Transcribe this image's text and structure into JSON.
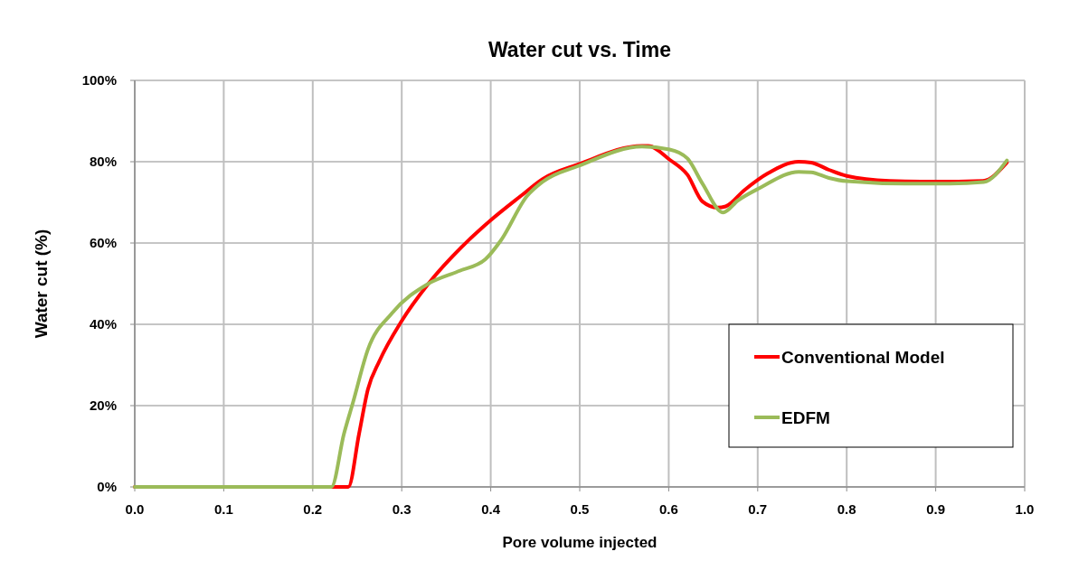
{
  "chart_data": {
    "type": "line",
    "title": "Water cut vs. Time",
    "xlabel": "Pore volume injected",
    "ylabel": "Water cut (%)",
    "xlim": [
      0,
      1
    ],
    "xticks": [
      {
        "value": 0,
        "label": "0.0"
      },
      {
        "value": 0.1,
        "label": "0.1"
      },
      {
        "value": 0.2,
        "label": "0.2"
      },
      {
        "value": 0.3,
        "label": "0.3"
      },
      {
        "value": 0.4,
        "label": "0.4"
      },
      {
        "value": 0.5,
        "label": "0.5"
      },
      {
        "value": 0.6,
        "label": "0.6"
      },
      {
        "value": 0.7,
        "label": "0.7"
      },
      {
        "value": 0.8,
        "label": "0.8"
      },
      {
        "value": 0.9,
        "label": "0.9"
      },
      {
        "value": 1,
        "label": "1.0"
      }
    ],
    "ylim": [
      0,
      100
    ],
    "yticks": [
      {
        "value": 0,
        "label": "0%"
      },
      {
        "value": 20,
        "label": "20%"
      },
      {
        "value": 40,
        "label": "40%"
      },
      {
        "value": 60,
        "label": "60%"
      },
      {
        "value": 80,
        "label": "80%"
      },
      {
        "value": 100,
        "label": "100%"
      }
    ],
    "grid": true,
    "legend": "bottom right",
    "marker": "none",
    "line_style": "solid",
    "series": [
      {
        "name": "Conventional Model",
        "color": "#ff0000",
        "x": [
          0,
          0.1,
          0.2,
          0.24,
          0.252,
          0.262,
          0.275,
          0.299,
          0.33,
          0.37,
          0.4,
          0.434,
          0.458,
          0.499,
          0.57,
          0.577,
          0.601,
          0.621,
          0.638,
          0.655,
          0.664,
          0.685,
          0.712,
          0.746,
          0.76,
          0.78,
          0.8,
          0.848,
          0.898,
          0.953,
          0.98
        ],
        "values": [
          0,
          0,
          0,
          0,
          13,
          24,
          31,
          40.5,
          50,
          59.6,
          65.6,
          71.6,
          75.7,
          79.4,
          83.9,
          83.9,
          80.5,
          76.8,
          70.2,
          68.7,
          69,
          73,
          77.2,
          80,
          79.8,
          78,
          76.5,
          75.3,
          75.1,
          75.3,
          79.8
        ]
      },
      {
        "name": "EDFM",
        "color": "#9bbb59",
        "x": [
          0,
          0.1,
          0.2,
          0.221,
          0.235,
          0.245,
          0.262,
          0.289,
          0.33,
          0.363,
          0.394,
          0.411,
          0.441,
          0.458,
          0.499,
          0.57,
          0.601,
          0.621,
          0.638,
          0.661,
          0.678,
          0.702,
          0.746,
          0.76,
          0.78,
          0.8,
          0.865,
          0.916,
          0.954,
          0.98
        ],
        "values": [
          0,
          0,
          0,
          0,
          13,
          20.6,
          33.8,
          42.7,
          50,
          53,
          56,
          60.5,
          71.6,
          75,
          79,
          83.7,
          83,
          80.8,
          74.6,
          67.5,
          70.5,
          73.5,
          77.5,
          77.4,
          76,
          75.2,
          74.6,
          74.6,
          75,
          80.3
        ]
      }
    ]
  }
}
